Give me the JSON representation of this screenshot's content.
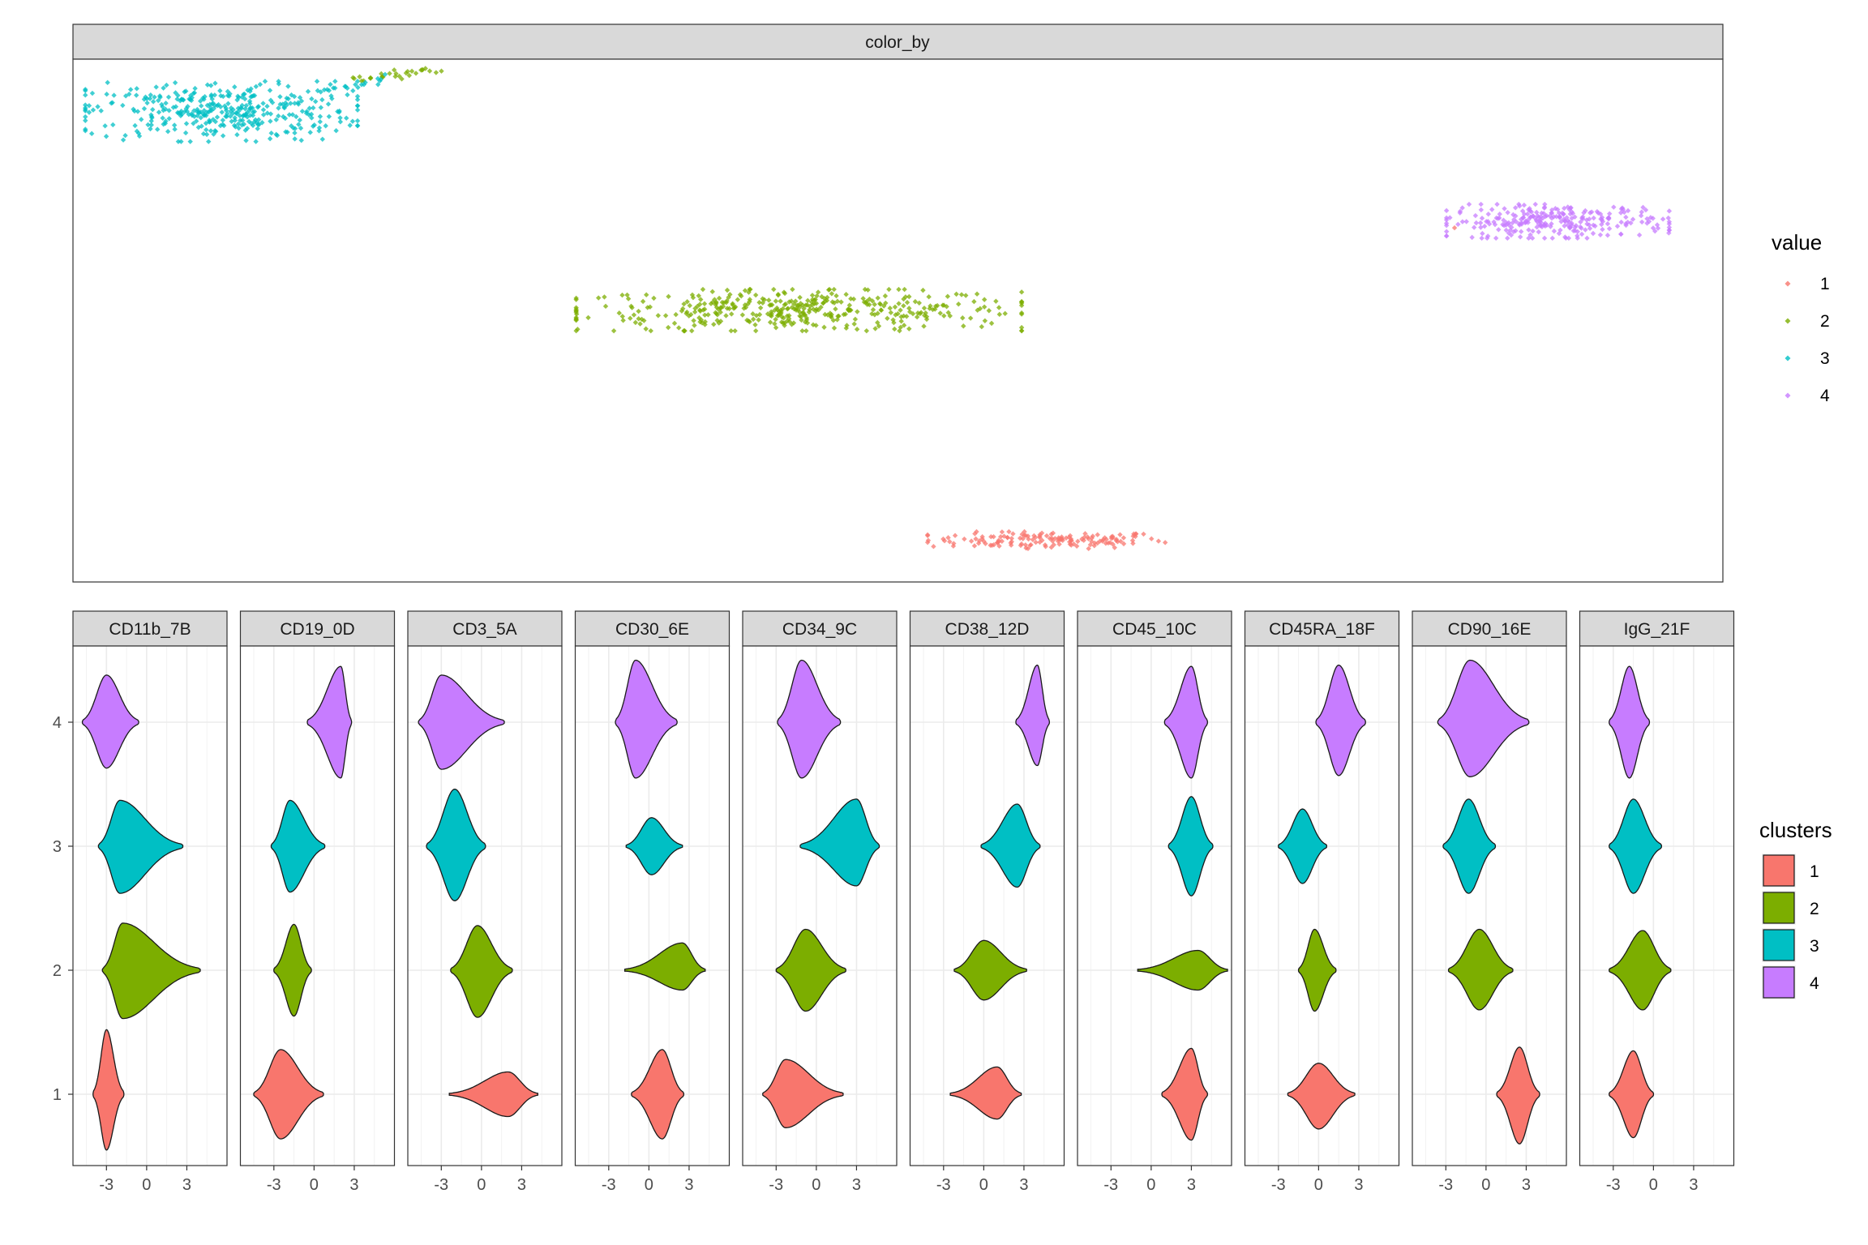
{
  "chart_data": [
    {
      "type": "scatter",
      "facet_label": "color_by",
      "legend": {
        "title": "value",
        "entries": [
          "1",
          "2",
          "3",
          "4"
        ],
        "placement": "right"
      },
      "colors": {
        "1": "#F8766D",
        "2": "#7CAE00",
        "3": "#00BFC4",
        "4": "#C77CFF"
      },
      "clusters": [
        {
          "value": "1",
          "color_key": "1",
          "center": [
            0.59,
            0.08
          ],
          "spread": [
            0.048,
            0.009
          ],
          "count": 150
        },
        {
          "value": "2",
          "color_key": "2",
          "center": [
            0.44,
            0.52
          ],
          "spread": [
            0.09,
            0.022
          ],
          "count": 420
        },
        {
          "value": "3",
          "color_key": "3",
          "center": [
            0.09,
            0.9
          ],
          "spread": [
            0.055,
            0.032
          ],
          "count": 380
        },
        {
          "value": "4",
          "color_key": "4",
          "center": [
            0.9,
            0.69
          ],
          "spread": [
            0.045,
            0.018
          ],
          "count": 260
        }
      ],
      "bridge_points": [
        {
          "color_key": "2",
          "from": [
            0.17,
            0.96
          ],
          "to": [
            0.22,
            0.98
          ],
          "count": 30
        },
        {
          "color_key": "3",
          "from": [
            0.15,
            0.94
          ],
          "to": [
            0.19,
            0.96
          ],
          "count": 20
        },
        {
          "color_key": "4",
          "from": [
            0.86,
            0.68
          ],
          "to": [
            0.875,
            0.67
          ],
          "count": 8
        },
        {
          "color_key": "1",
          "from": [
            0.84,
            0.68
          ],
          "to": [
            0.84,
            0.68
          ],
          "count": 1
        }
      ],
      "grid": false
    },
    {
      "type": "violin",
      "x_ticks": [
        -3,
        0,
        3
      ],
      "xlim": [
        -5.5,
        6.0
      ],
      "y_categories": [
        "1",
        "2",
        "3",
        "4"
      ],
      "legend": {
        "title": "clusters",
        "entries": [
          "1",
          "2",
          "3",
          "4"
        ],
        "placement": "right"
      },
      "colors": {
        "1": "#F8766D",
        "2": "#7CAE00",
        "3": "#00BFC4",
        "4": "#C77CFF"
      },
      "grid": true,
      "panels": [
        {
          "label": "CD11b_7B",
          "violins": {
            "1": {
              "min": -4.0,
              "max": -1.7,
              "mode": -3.0,
              "tail_max": -1.7,
              "bottom": 0.45,
              "top": 0.52,
              "peak": 0.26
            },
            "2": {
              "min": -3.3,
              "max": 4.0,
              "mode": -1.8,
              "tail_max": 4.0,
              "bottom": 0.39,
              "top": 0.38,
              "peak": 0.28
            },
            "3": {
              "min": -3.6,
              "max": 2.7,
              "mode": -2.0,
              "tail_max": 2.7,
              "bottom": 0.38,
              "top": 0.37,
              "peak": 0.26
            },
            "4": {
              "min": -4.8,
              "max": -0.6,
              "mode": -3.0,
              "tail_max": -0.6,
              "bottom": 0.37,
              "top": 0.38,
              "peak": 0.24
            }
          }
        },
        {
          "label": "CD19_0D",
          "violins": {
            "1": {
              "min": -4.5,
              "max": 0.7,
              "mode": -2.5,
              "tail_max": 0.7,
              "bottom": 0.36,
              "top": 0.36,
              "peak": 0.24
            },
            "2": {
              "min": -3.0,
              "max": -0.2,
              "mode": -1.5,
              "tail_max": -0.2,
              "bottom": 0.37,
              "top": 0.37,
              "peak": 0.24
            },
            "3": {
              "min": -3.2,
              "max": 0.8,
              "mode": -1.8,
              "tail_max": 0.8,
              "bottom": 0.37,
              "top": 0.37,
              "peak": 0.24
            },
            "4": {
              "min": -0.5,
              "max": 2.8,
              "mode": 2.0,
              "tail_max": 2.8,
              "bottom": 0.45,
              "top": 0.45,
              "peak": 0.24
            }
          }
        },
        {
          "label": "CD3_5A",
          "violins": {
            "1": {
              "min": -2.4,
              "max": 4.2,
              "mode": 2.0,
              "tail_max": 4.2,
              "bottom": 0.18,
              "top": 0.18,
              "peak": 0.42
            },
            "2": {
              "min": -2.3,
              "max": 2.3,
              "mode": -0.3,
              "tail_max": 2.3,
              "bottom": 0.38,
              "top": 0.36,
              "peak": 0.26
            },
            "3": {
              "min": -4.1,
              "max": 0.3,
              "mode": -2.0,
              "tail_max": 0.3,
              "bottom": 0.44,
              "top": 0.46,
              "peak": 0.26
            },
            "4": {
              "min": -4.7,
              "max": 1.7,
              "mode": -3.0,
              "tail_max": 1.7,
              "bottom": 0.38,
              "top": 0.38,
              "peak": 0.24
            }
          }
        },
        {
          "label": "CD30_6E",
          "violins": {
            "1": {
              "min": -1.3,
              "max": 2.6,
              "mode": 1.0,
              "tail_max": 2.6,
              "bottom": 0.36,
              "top": 0.36,
              "peak": 0.26
            },
            "2": {
              "min": -1.8,
              "max": 4.2,
              "mode": 2.5,
              "tail_max": 4.2,
              "bottom": 0.16,
              "top": 0.22,
              "peak": 0.24
            },
            "3": {
              "min": -1.7,
              "max": 2.5,
              "mode": 0.2,
              "tail_max": 2.5,
              "bottom": 0.23,
              "top": 0.23,
              "peak": 0.24
            },
            "4": {
              "min": -2.5,
              "max": 2.1,
              "mode": -1.0,
              "tail_max": 2.1,
              "bottom": 0.45,
              "top": 0.5,
              "peak": 0.24
            }
          }
        },
        {
          "label": "CD34_9C",
          "violins": {
            "1": {
              "min": -4.0,
              "max": 2.0,
              "mode": -2.3,
              "tail_max": 2.0,
              "bottom": 0.27,
              "top": 0.28,
              "peak": 0.26
            },
            "2": {
              "min": -3.0,
              "max": 2.2,
              "mode": -0.8,
              "tail_max": 2.2,
              "bottom": 0.33,
              "top": 0.33,
              "peak": 0.24
            },
            "3": {
              "min": -1.2,
              "max": 4.7,
              "mode": 3.0,
              "tail_max": 4.7,
              "bottom": 0.32,
              "top": 0.38,
              "peak": 0.26
            },
            "4": {
              "min": -2.9,
              "max": 1.8,
              "mode": -1.1,
              "tail_max": 1.8,
              "bottom": 0.45,
              "top": 0.5,
              "peak": 0.24
            }
          }
        },
        {
          "label": "CD38_12D",
          "violins": {
            "1": {
              "min": -2.5,
              "max": 2.8,
              "mode": 1.0,
              "tail_max": 2.8,
              "bottom": 0.2,
              "top": 0.22,
              "peak": 0.26
            },
            "2": {
              "min": -2.2,
              "max": 3.2,
              "mode": 0.0,
              "tail_max": 3.2,
              "bottom": 0.24,
              "top": 0.24,
              "peak": 0.28
            },
            "3": {
              "min": -0.2,
              "max": 4.2,
              "mode": 2.5,
              "tail_max": 4.2,
              "bottom": 0.33,
              "top": 0.34,
              "peak": 0.26
            },
            "4": {
              "min": 2.4,
              "max": 4.9,
              "mode": 4.0,
              "tail_max": 4.9,
              "bottom": 0.35,
              "top": 0.46,
              "peak": 0.26
            }
          }
        },
        {
          "label": "CD45_10C",
          "violins": {
            "1": {
              "min": 0.8,
              "max": 4.2,
              "mode": 3.0,
              "tail_max": 4.2,
              "bottom": 0.37,
              "top": 0.37,
              "peak": 0.24
            },
            "2": {
              "min": -1.0,
              "max": 5.7,
              "mode": 3.5,
              "tail_max": 5.7,
              "bottom": 0.16,
              "top": 0.16,
              "peak": 0.22
            },
            "3": {
              "min": 1.3,
              "max": 4.6,
              "mode": 3.0,
              "tail_max": 4.6,
              "bottom": 0.4,
              "top": 0.4,
              "peak": 0.24
            },
            "4": {
              "min": 1.0,
              "max": 4.2,
              "mode": 3.0,
              "tail_max": 4.2,
              "bottom": 0.45,
              "top": 0.45,
              "peak": 0.24
            }
          }
        },
        {
          "label": "CD45RA_18F",
          "violins": {
            "1": {
              "min": -2.3,
              "max": 2.7,
              "mode": 0.0,
              "tail_max": 2.7,
              "bottom": 0.28,
              "top": 0.25,
              "peak": 0.26
            },
            "2": {
              "min": -1.5,
              "max": 1.3,
              "mode": -0.3,
              "tail_max": 1.3,
              "bottom": 0.33,
              "top": 0.33,
              "peak": 0.24
            },
            "3": {
              "min": -3.0,
              "max": 0.6,
              "mode": -1.2,
              "tail_max": 0.6,
              "bottom": 0.3,
              "top": 0.3,
              "peak": 0.24
            },
            "4": {
              "min": -0.2,
              "max": 3.5,
              "mode": 1.5,
              "tail_max": 3.5,
              "bottom": 0.43,
              "top": 0.46,
              "peak": 0.24
            }
          }
        },
        {
          "label": "CD90_16E",
          "violins": {
            "1": {
              "min": 0.8,
              "max": 4.0,
              "mode": 2.5,
              "tail_max": 4.0,
              "bottom": 0.4,
              "top": 0.38,
              "peak": 0.24
            },
            "2": {
              "min": -2.8,
              "max": 2.0,
              "mode": -0.5,
              "tail_max": 2.0,
              "bottom": 0.32,
              "top": 0.33,
              "peak": 0.24
            },
            "3": {
              "min": -3.2,
              "max": 0.7,
              "mode": -1.3,
              "tail_max": 0.7,
              "bottom": 0.38,
              "top": 0.38,
              "peak": 0.24
            },
            "4": {
              "min": -3.6,
              "max": 3.2,
              "mode": -1.2,
              "tail_max": 3.2,
              "bottom": 0.44,
              "top": 0.5,
              "peak": 0.24
            }
          }
        },
        {
          "label": "IgG_21F",
          "violins": {
            "1": {
              "min": -3.3,
              "max": 0.0,
              "mode": -1.5,
              "tail_max": 0.0,
              "bottom": 0.35,
              "top": 0.35,
              "peak": 0.24
            },
            "2": {
              "min": -3.3,
              "max": 1.3,
              "mode": -0.8,
              "tail_max": 1.3,
              "bottom": 0.32,
              "top": 0.32,
              "peak": 0.24
            },
            "3": {
              "min": -3.3,
              "max": 0.6,
              "mode": -1.5,
              "tail_max": 0.6,
              "bottom": 0.38,
              "top": 0.38,
              "peak": 0.24
            },
            "4": {
              "min": -3.3,
              "max": -0.3,
              "mode": -1.8,
              "tail_max": -0.3,
              "bottom": 0.45,
              "top": 0.45,
              "peak": 0.24
            }
          }
        }
      ]
    }
  ]
}
